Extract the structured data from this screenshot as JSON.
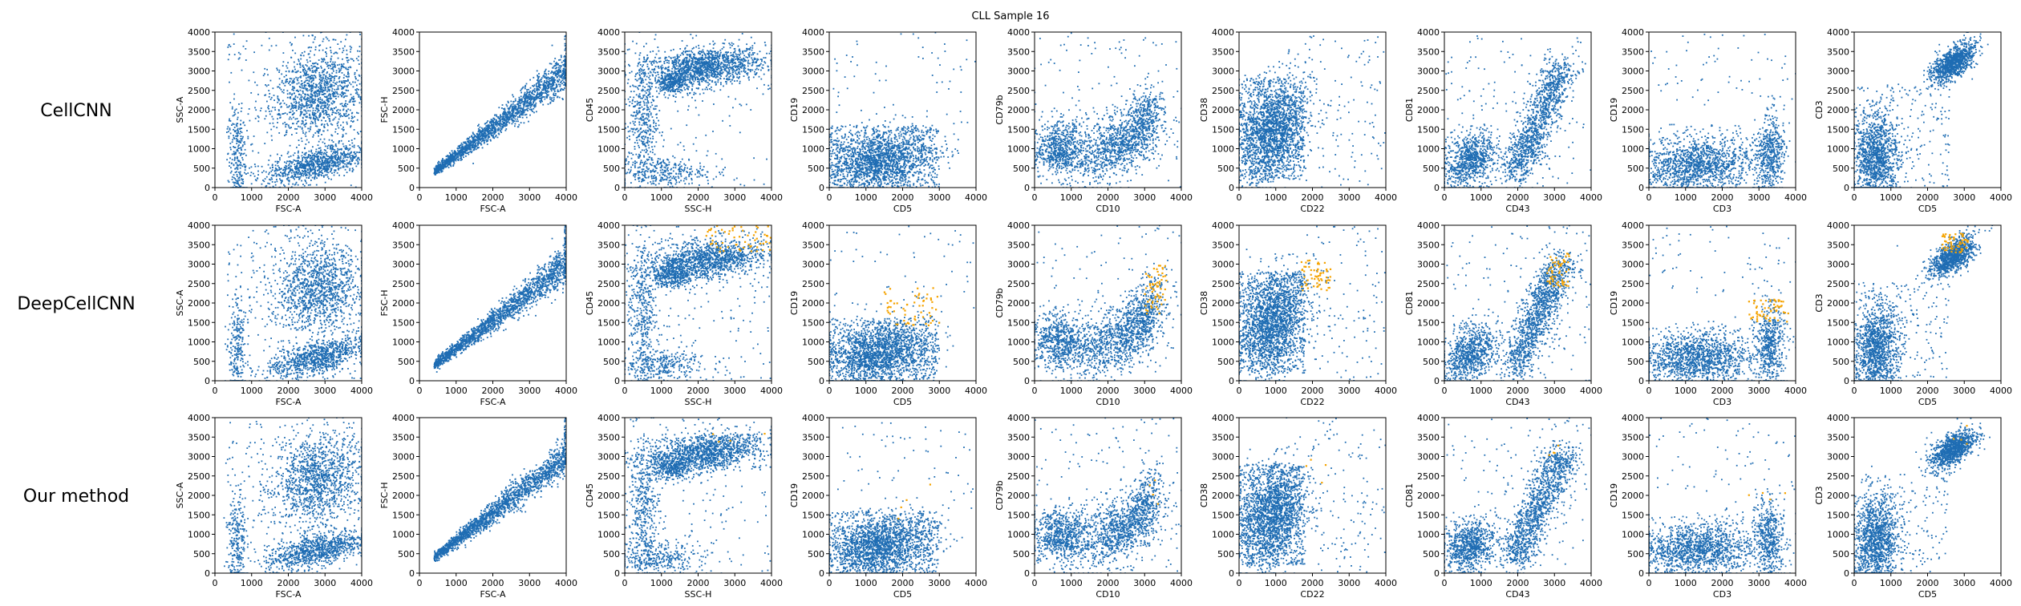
{
  "title": "CLL Sample 16",
  "colors": {
    "main": "#1f6db3",
    "highlight": "#f5a300"
  },
  "chart_data": {
    "type": "scatter",
    "title": "CLL Sample 16",
    "rows": [
      "CellCNN",
      "DeepCellCNN",
      "Our method"
    ],
    "axis_range": [
      0,
      4000
    ],
    "ticks": [
      "0",
      "500",
      "1000",
      "1500",
      "2000",
      "2500",
      "3000",
      "3500",
      "4000"
    ],
    "x_ticks": [
      "0",
      "1000",
      "2000",
      "3000",
      "4000"
    ],
    "panels": [
      {
        "xlabel": "FSC-A",
        "ylabel": "SSC-A",
        "pattern": "fsc_ssc",
        "highlight_region": null
      },
      {
        "xlabel": "FSC-A",
        "ylabel": "FSC-H",
        "pattern": "diagonal",
        "highlight_region": null
      },
      {
        "xlabel": "SSC-H",
        "ylabel": "CD45",
        "pattern": "cd45",
        "highlight_region": [
          [
            2200,
            4000
          ],
          [
            3300,
            4000
          ]
        ]
      },
      {
        "xlabel": "CD5",
        "ylabel": "CD19",
        "pattern": "cd5_cd19",
        "highlight_region": [
          [
            1500,
            3000
          ],
          [
            1400,
            2400
          ]
        ]
      },
      {
        "xlabel": "CD10",
        "ylabel": "CD79b",
        "pattern": "cd10_cd79b",
        "highlight_region": [
          [
            3000,
            3600
          ],
          [
            1700,
            3000
          ]
        ]
      },
      {
        "xlabel": "CD22",
        "ylabel": "CD38",
        "pattern": "cd22_cd38",
        "highlight_region": [
          [
            1700,
            2500
          ],
          [
            2300,
            3100
          ]
        ]
      },
      {
        "xlabel": "CD43",
        "ylabel": "CD81",
        "pattern": "cd43_cd81",
        "highlight_region": [
          [
            2800,
            3400
          ],
          [
            2400,
            3300
          ]
        ]
      },
      {
        "xlabel": "CD3",
        "ylabel": "CD19",
        "pattern": "cd3_cd19",
        "highlight_region": [
          [
            2700,
            3800
          ],
          [
            1500,
            2100
          ]
        ]
      },
      {
        "xlabel": "CD5",
        "ylabel": "CD3",
        "pattern": "cd5_cd3",
        "highlight_region": [
          [
            2400,
            3100
          ],
          [
            3300,
            3800
          ]
        ]
      }
    ],
    "highlight_rows": [
      1,
      2
    ],
    "highlight_counts": [
      0,
      60,
      4
    ]
  }
}
